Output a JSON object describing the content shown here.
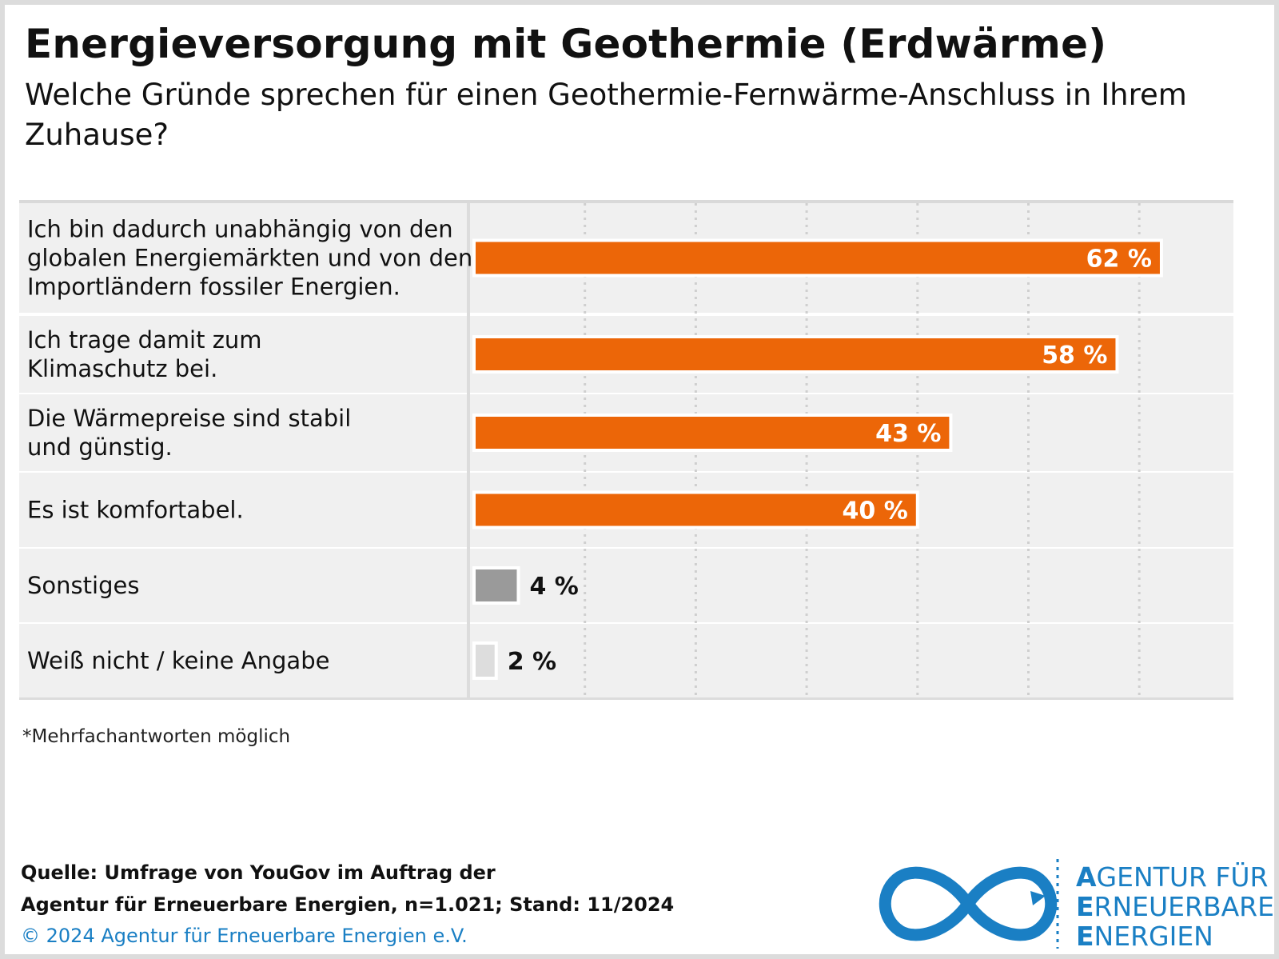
{
  "title": "Energieversorgung mit Geothermie (Erdwärme)",
  "subtitle": "Welche Gründe sprechen für einen Geothermie-Fernwärme-Anschluss in Ihrem Zuhause?",
  "footnote": "*Mehrfachantworten möglich",
  "source": {
    "line1": "Quelle: Umfrage von YouGov im Auftrag der",
    "line2": "Agentur für Erneuerbare Energien, n=1.021; Stand: 11/2024"
  },
  "copyright": "© 2024 Agentur für Erneuerbare Energien e.V.",
  "logo": {
    "line1_initial": "A",
    "line1_rest": "GENTUR FÜR",
    "line2_initial": "E",
    "line2_rest": "RNEUERBARE",
    "line3_initial": "E",
    "line3_rest": "NERGIEN",
    "icon": "infinity-icon"
  },
  "colors": {
    "primary": "#ec6608",
    "other": "#9a9a9a",
    "unknown": "#dddddd",
    "row_background": "#f0f0f0",
    "brand_blue": "#1a7fc4"
  },
  "chart_data": {
    "type": "bar",
    "orientation": "horizontal",
    "categories": [
      [
        "Ich bin dadurch unabhängig von den",
        "globalen Energiemärkten und von den",
        "Importländern fossiler Energien."
      ],
      [
        "Ich trage damit zum",
        "Klimaschutz bei."
      ],
      [
        "Die Wärmepreise sind stabil",
        "und günstig."
      ],
      [
        "Es ist komfortabel."
      ],
      [
        "Sonstiges"
      ],
      [
        "Weiß nicht / keine Angabe"
      ]
    ],
    "values": [
      62,
      58,
      43,
      40,
      4,
      2
    ],
    "value_labels": [
      "62 %",
      "58 %",
      "43 %",
      "40 %",
      "4 %",
      "2 %"
    ],
    "bar_colors": [
      "#ec6608",
      "#ec6608",
      "#ec6608",
      "#ec6608",
      "#9a9a9a",
      "#dddddd"
    ],
    "xlim": [
      0,
      70
    ],
    "grid": true
  }
}
